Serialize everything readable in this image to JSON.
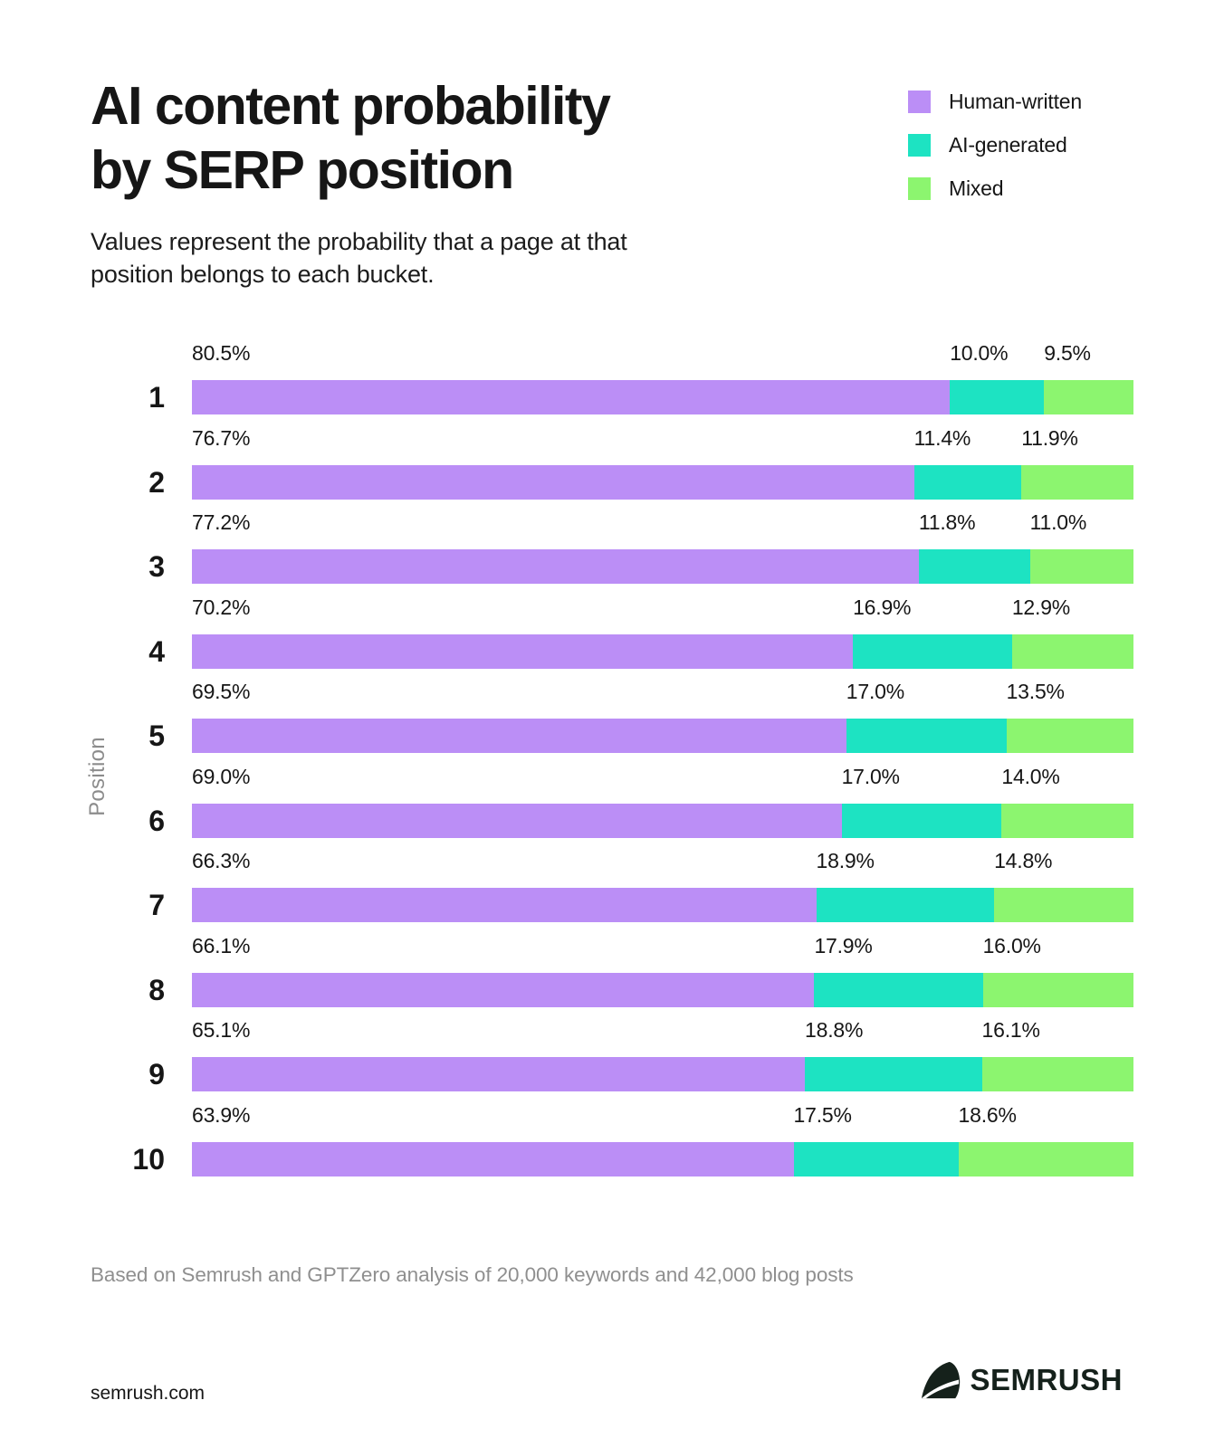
{
  "header": {
    "title_lines": [
      "AI content probability",
      "by SERP position"
    ],
    "subtitle": "Values represent the probability that a page at that position belongs to each bucket."
  },
  "chart_data": {
    "type": "bar",
    "orientation": "horizontal-stacked",
    "title": "AI content probability by SERP position",
    "subtitle": "Values represent the probability that a page at that position belongs to each bucket.",
    "ylabel": "Position",
    "xlim": [
      0,
      100
    ],
    "grid": false,
    "legend_position": "top-right",
    "categories": [
      "1",
      "2",
      "3",
      "4",
      "5",
      "6",
      "7",
      "8",
      "9",
      "10"
    ],
    "series": [
      {
        "name": "Human-written",
        "color": "#bb8ef6",
        "values": [
          80.5,
          76.7,
          77.2,
          70.2,
          69.5,
          69.0,
          66.3,
          66.1,
          65.1,
          63.9
        ]
      },
      {
        "name": "AI-generated",
        "color": "#1de3c2",
        "values": [
          10.0,
          11.4,
          11.8,
          16.9,
          17.0,
          17.0,
          18.9,
          17.9,
          18.8,
          17.5
        ]
      },
      {
        "name": "Mixed",
        "color": "#8cf56f",
        "values": [
          9.5,
          11.9,
          11.0,
          12.9,
          13.5,
          14.0,
          14.8,
          16.0,
          16.1,
          18.6
        ]
      }
    ],
    "value_label_format": "percent-one-decimal"
  },
  "footnote": "Based on Semrush and GPTZero analysis of 20,000 keywords and 42,000 blog posts",
  "footer": {
    "site": "semrush.com",
    "brand": "SEMRUSH"
  }
}
